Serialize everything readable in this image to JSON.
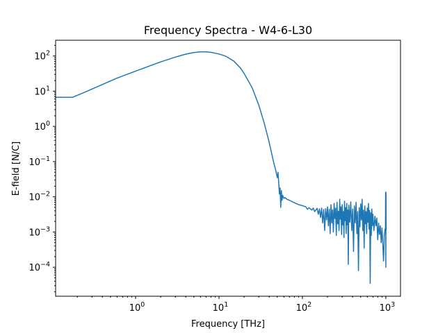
{
  "chart_data": {
    "type": "line",
    "title": "Frequency Spectra - W4-6-L30",
    "xlabel": "Frequency [THz]",
    "ylabel": "E-field [N/C]",
    "xscale": "log",
    "yscale": "log",
    "xlim": [
      0.11,
      1500
    ],
    "ylim": [
      1.5e-05,
      280
    ],
    "grid": false,
    "x_ticks": [
      {
        "base": "10",
        "exp": "0",
        "value": 1
      },
      {
        "base": "10",
        "exp": "1",
        "value": 10
      },
      {
        "base": "10",
        "exp": "2",
        "value": 100
      },
      {
        "base": "10",
        "exp": "3",
        "value": 1000
      }
    ],
    "y_ticks": [
      {
        "base": "10",
        "exp": "−4",
        "value": 0.0001
      },
      {
        "base": "10",
        "exp": "−3",
        "value": 0.001
      },
      {
        "base": "10",
        "exp": "−2",
        "value": 0.01
      },
      {
        "base": "10",
        "exp": "−1",
        "value": 0.1
      },
      {
        "base": "10",
        "exp": "0",
        "value": 1
      },
      {
        "base": "10",
        "exp": "1",
        "value": 10
      },
      {
        "base": "10",
        "exp": "2",
        "value": 100
      }
    ],
    "series": [
      {
        "color": "#1f77b4",
        "points": [
          [
            0.11,
            6.7
          ],
          [
            0.175,
            6.7
          ],
          [
            0.25,
            9.5
          ],
          [
            0.4,
            15.5
          ],
          [
            0.6,
            23.5
          ],
          [
            1,
            37
          ],
          [
            1.5,
            53
          ],
          [
            2,
            68
          ],
          [
            3,
            93
          ],
          [
            4,
            113
          ],
          [
            5,
            125
          ],
          [
            6,
            131
          ],
          [
            7,
            131
          ],
          [
            8,
            127
          ],
          [
            10,
            114
          ],
          [
            12,
            99
          ],
          [
            15,
            72
          ],
          [
            18,
            46
          ],
          [
            20,
            32
          ],
          [
            25,
            12.5
          ],
          [
            30,
            4
          ],
          [
            35,
            1.2
          ],
          [
            40,
            0.35
          ],
          [
            45,
            0.1
          ],
          [
            48,
            0.055
          ],
          [
            50,
            0.035
          ],
          [
            51,
            0.05
          ],
          [
            52,
            0.025
          ],
          [
            53,
            0.012
          ],
          [
            54,
            0.018
          ],
          [
            55,
            0.005
          ],
          [
            56,
            0.015
          ],
          [
            57,
            0.008
          ],
          [
            58,
            0.011
          ],
          [
            60,
            0.009
          ],
          [
            62,
            0.0095
          ],
          [
            65,
            0.0085
          ],
          [
            70,
            0.008
          ],
          [
            80,
            0.0068
          ],
          [
            90,
            0.006
          ],
          [
            100,
            0.0056
          ],
          [
            110,
            0.0052
          ],
          [
            115,
            0.0044
          ],
          [
            120,
            0.0049
          ],
          [
            130,
            0.0042
          ],
          [
            135,
            0.0048
          ],
          [
            140,
            0.0038
          ],
          [
            150,
            0.0047
          ],
          [
            155,
            0.0032
          ],
          [
            160,
            0.0045
          ],
          [
            165,
            0.0026
          ],
          [
            170,
            0.0048
          ],
          [
            175,
            0.0018
          ],
          [
            180,
            0.0044
          ],
          [
            185,
            0.0011
          ],
          [
            190,
            0.0046
          ],
          [
            195,
            0.0022
          ],
          [
            200,
            0.0052
          ],
          [
            205,
            0.0015
          ],
          [
            210,
            0.0045
          ],
          [
            215,
            0.0009
          ],
          [
            220,
            0.006
          ],
          [
            225,
            0.0018
          ],
          [
            230,
            0.0043
          ],
          [
            235,
            0.001
          ],
          [
            240,
            0.0065
          ],
          [
            245,
            0.0024
          ],
          [
            250,
            0.0048
          ],
          [
            255,
            0.0008
          ],
          [
            260,
            0.007
          ],
          [
            265,
            0.0017
          ],
          [
            270,
            0.0039
          ],
          [
            275,
            0.0011
          ],
          [
            280,
            0.0085
          ],
          [
            285,
            0.0023
          ],
          [
            290,
            0.0052
          ],
          [
            295,
            0.00085
          ],
          [
            300,
            0.006
          ],
          [
            305,
            0.0016
          ],
          [
            310,
            0.0038
          ],
          [
            315,
            0.0007
          ],
          [
            320,
            0.0075
          ],
          [
            325,
            0.0021
          ],
          [
            330,
            0.0049
          ],
          [
            335,
            0.0009
          ],
          [
            340,
            0.0065
          ],
          [
            345,
            0.0016
          ],
          [
            350,
            0.0042
          ],
          [
            355,
            0.00012
          ],
          [
            360,
            0.0058
          ],
          [
            370,
            0.0019
          ],
          [
            380,
            0.0072
          ],
          [
            390,
            0.0011
          ],
          [
            400,
            0.0045
          ],
          [
            410,
            0.00028
          ],
          [
            420,
            0.0055
          ],
          [
            430,
            0.0018
          ],
          [
            440,
            0.007
          ],
          [
            450,
            0.0009
          ],
          [
            460,
            0.0038
          ],
          [
            470,
            8e-05
          ],
          [
            480,
            0.0049
          ],
          [
            490,
            0.0014
          ],
          [
            500,
            0.0063
          ],
          [
            510,
            0.0022
          ],
          [
            520,
            0.0085
          ],
          [
            530,
            0.0011
          ],
          [
            540,
            0.0042
          ],
          [
            550,
            0.00035
          ],
          [
            560,
            0.0055
          ],
          [
            570,
            0.0017
          ],
          [
            580,
            0.0038
          ],
          [
            590,
            0.0009
          ],
          [
            600,
            0.0048
          ],
          [
            610,
            0.0019
          ],
          [
            620,
            0.0065
          ],
          [
            630,
            0.0012
          ],
          [
            640,
            0.0041
          ],
          [
            650,
            3.5e-05
          ],
          [
            660,
            0.0035
          ],
          [
            670,
            0.0008
          ],
          [
            680,
            0.0045
          ],
          [
            690,
            0.0015
          ],
          [
            700,
            0.0032
          ],
          [
            720,
            0.0011
          ],
          [
            740,
            0.0028
          ],
          [
            760,
            0.0015
          ],
          [
            780,
            0.0025
          ],
          [
            800,
            0.0006
          ],
          [
            820,
            0.0018
          ],
          [
            840,
            0.00085
          ],
          [
            860,
            0.0015
          ],
          [
            880,
            0.0005
          ],
          [
            900,
            0.0013
          ],
          [
            920,
            0.00045
          ],
          [
            940,
            0.00015
          ],
          [
            960,
            0.0008
          ],
          [
            980,
            0.0012
          ],
          [
            990,
            0.0013
          ],
          [
            995,
            0.0135
          ],
          [
            1000,
            0.0001
          ],
          [
            1005,
            0.0135
          ],
          [
            1010,
            0.0011
          ]
        ]
      }
    ]
  }
}
